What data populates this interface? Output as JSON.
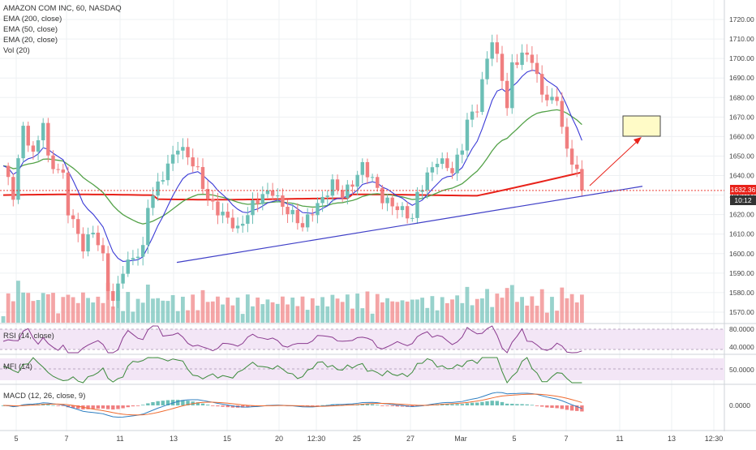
{
  "legend": {
    "symbol": "AMAZON COM INC, 60, NASDAQ",
    "studies": [
      "EMA (200, close)",
      "EMA (50, close)",
      "EMA (20, close)",
      "Vol (20)"
    ]
  },
  "panes": {
    "rsi": {
      "label": "RSI (14, close)",
      "levels": [
        "80.0000",
        "40.0000"
      ]
    },
    "mfi": {
      "label": "MFI (14)",
      "levels": [
        "50.0000"
      ]
    },
    "macd": {
      "label": "MACD (12, 26, close, 9)",
      "levels": [
        "0.0000"
      ]
    }
  },
  "price_tag": {
    "price": "1632.36",
    "countdown": "10:12"
  },
  "colors": {
    "up": "#6cbfb6",
    "down": "#f07f80",
    "ema200": "#e8221a",
    "ema50": "#54a249",
    "ema20": "#3a3ad6",
    "trendline": "#3f3fc7",
    "rsi": "#8a3a8f",
    "mfi": "#3b8a3b",
    "band": "#f3e6f6",
    "price_tag": "#e8221a",
    "countdown_tag": "#333333"
  },
  "chart_data": {
    "type": "candlestick",
    "y_axis": {
      "ticks": [
        1570,
        1580,
        1590,
        1600,
        1610,
        1620,
        1630,
        1640,
        1650,
        1660,
        1670,
        1680,
        1690,
        1700,
        1710,
        1720
      ],
      "range": [
        1565,
        1725
      ]
    },
    "x_ticks": [
      "5",
      "7",
      "11",
      "13",
      "15",
      "20",
      "12:30",
      "25",
      "27",
      "Mar",
      "5",
      "7",
      "11",
      "13",
      "12:30"
    ],
    "last_price": 1632.36
  }
}
